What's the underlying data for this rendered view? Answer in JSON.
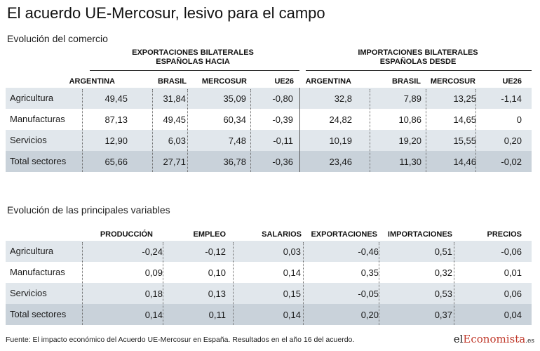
{
  "title": "El acuerdo UE-Mercosur, lesivo para el campo",
  "source": "Fuente: El impacto económico del Acuerdo UE-Mercosur en España. Resultados en el año 16 del acuerdo.",
  "logo": {
    "pre": "el",
    "accent": "Economista",
    "suffix": ".es"
  },
  "colors": {
    "row_shade": "#e1e7ec",
    "total_row": "#c9d2da",
    "logo_accent": "#c0392b"
  },
  "chart_data": [
    {
      "type": "table",
      "subtitle": "Evolución del comercio",
      "groups": [
        {
          "label": "EXPORTACIONES BILATERALES ESPAÑOLAS HACIA",
          "line1": "EXPORTACIONES BILATERALES",
          "line2": "ESPAÑOLAS HACIA",
          "columns": [
            "ARGENTINA",
            "BRASIL",
            "MERCOSUR",
            "UE26"
          ]
        },
        {
          "label": "IMPORTACIONES BILATERALES ESPAÑOLAS DESDE",
          "line1": "IMPORTACIONES BILATERALES",
          "line2": "ESPAÑOLAS DESDE",
          "columns": [
            "ARGENTINA",
            "BRASIL",
            "MERCOSUR",
            "UE26"
          ]
        }
      ],
      "columns": [
        "ARGENTINA",
        "BRASIL",
        "MERCOSUR",
        "UE26",
        "ARGENTINA",
        "BRASIL",
        "MERCOSUR",
        "UE26"
      ],
      "rows": [
        {
          "label": "Agricultura",
          "values": [
            "49,45",
            "31,84",
            "35,09",
            "-0,80",
            "32,8",
            "7,89",
            "13,25",
            "-1,14"
          ]
        },
        {
          "label": "Manufacturas",
          "values": [
            "87,13",
            "49,45",
            "60,34",
            "-0,39",
            "24,82",
            "10,86",
            "14,65",
            "0"
          ]
        },
        {
          "label": "Servicios",
          "values": [
            "12,90",
            "6,03",
            "7,48",
            "-0,11",
            "10,19",
            "19,20",
            "15,55",
            "0,20"
          ]
        },
        {
          "label": "Total sectores",
          "values": [
            "65,66",
            "27,71",
            "36,78",
            "-0,36",
            "23,46",
            "11,30",
            "14,46",
            "-0,02"
          ]
        }
      ]
    },
    {
      "type": "table",
      "subtitle": "Evolución de las principales variables",
      "columns": [
        "PRODUCCIÓN",
        "EMPLEO",
        "SALARIOS",
        "EXPORTACIONES",
        "IMPORTACIONES",
        "PRECIOS"
      ],
      "rows": [
        {
          "label": "Agricultura",
          "values": [
            "-0,24",
            "-0,12",
            "0,03",
            "-0,46",
            "0,51",
            "-0,06"
          ]
        },
        {
          "label": "Manufacturas",
          "values": [
            "0,09",
            "0,10",
            "0,14",
            "0,35",
            "0,32",
            "0,01"
          ]
        },
        {
          "label": "Servicios",
          "values": [
            "0,18",
            "0,13",
            "0,15",
            "-0,05",
            "0,53",
            "0,06"
          ]
        },
        {
          "label": "Total sectores",
          "values": [
            "0,14",
            "0,11",
            "0,14",
            "0,20",
            "0,37",
            "0,04"
          ]
        }
      ]
    }
  ]
}
